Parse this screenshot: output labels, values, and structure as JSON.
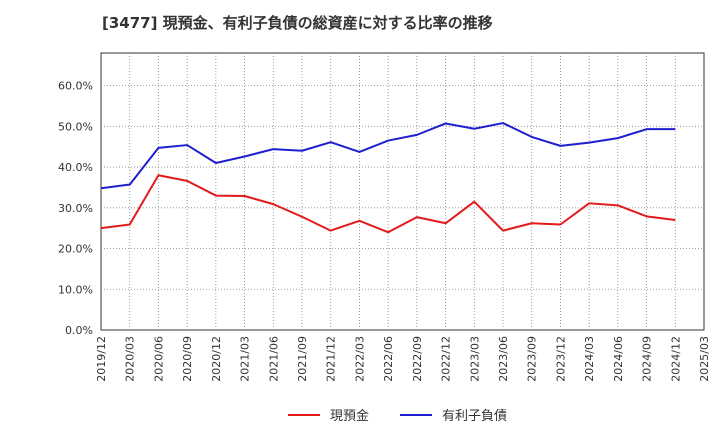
{
  "chart_data": {
    "type": "line",
    "title": "[3477]  現預金、有利子負債の総資産に対する比率の推移",
    "xlabel": "",
    "ylabel": "",
    "ylim": [
      0,
      0.68
    ],
    "yticks": [
      0,
      0.1,
      0.2,
      0.3,
      0.4,
      0.5,
      0.6
    ],
    "ytick_labels": [
      "0.0%",
      "10.0%",
      "20.0%",
      "30.0%",
      "40.0%",
      "50.0%",
      "60.0%"
    ],
    "categories": [
      "2019/12",
      "2020/03",
      "2020/06",
      "2020/09",
      "2020/12",
      "2021/03",
      "2021/06",
      "2021/09",
      "2021/12",
      "2022/03",
      "2022/06",
      "2022/09",
      "2022/12",
      "2023/03",
      "2023/06",
      "2023/09",
      "2023/12",
      "2024/03",
      "2024/06",
      "2024/09",
      "2024/12",
      "2025/03"
    ],
    "series": [
      {
        "name": "現預金",
        "color": "#e31a1c",
        "values": [
          0.25,
          0.259,
          0.38,
          0.366,
          0.33,
          0.329,
          0.309,
          0.278,
          0.244,
          0.268,
          0.24,
          0.277,
          0.262,
          0.315,
          0.244,
          0.262,
          0.259,
          0.311,
          0.306,
          0.279,
          0.27,
          null
        ]
      },
      {
        "name": "有利子負債",
        "color": "#1f1fcf",
        "values": [
          0.348,
          0.357,
          0.447,
          0.454,
          0.41,
          0.426,
          0.444,
          0.44,
          0.461,
          0.437,
          0.465,
          0.479,
          0.507,
          0.494,
          0.508,
          0.474,
          0.452,
          0.46,
          0.471,
          0.493,
          0.493,
          null
        ]
      }
    ],
    "grid": true,
    "legend_position": "bottom-center"
  }
}
